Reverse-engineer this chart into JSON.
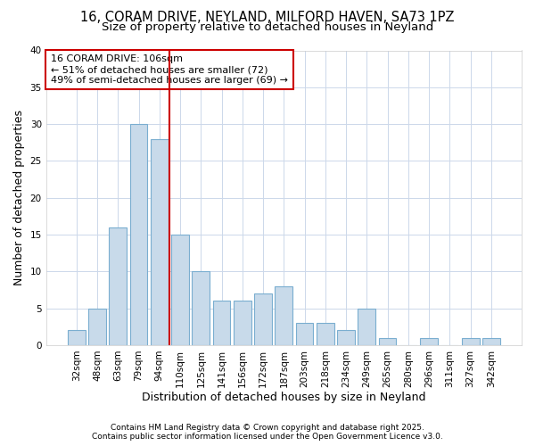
{
  "title1": "16, CORAM DRIVE, NEYLAND, MILFORD HAVEN, SA73 1PZ",
  "title2": "Size of property relative to detached houses in Neyland",
  "xlabel": "Distribution of detached houses by size in Neyland",
  "ylabel": "Number of detached properties",
  "bar_labels": [
    "32sqm",
    "48sqm",
    "63sqm",
    "79sqm",
    "94sqm",
    "110sqm",
    "125sqm",
    "141sqm",
    "156sqm",
    "172sqm",
    "187sqm",
    "203sqm",
    "218sqm",
    "234sqm",
    "249sqm",
    "265sqm",
    "280sqm",
    "296sqm",
    "311sqm",
    "327sqm",
    "342sqm"
  ],
  "bar_values": [
    2,
    5,
    16,
    30,
    28,
    15,
    10,
    6,
    6,
    7,
    8,
    3,
    3,
    2,
    5,
    1,
    0,
    1,
    0,
    1,
    1
  ],
  "bar_color": "#c8daea",
  "bar_edge_color": "#7aaed0",
  "vline_position": 4.5,
  "vline_color": "#cc0000",
  "annotation_text": "16 CORAM DRIVE: 106sqm\n← 51% of detached houses are smaller (72)\n49% of semi-detached houses are larger (69) →",
  "annotation_box_facecolor": "#ffffff",
  "annotation_box_edgecolor": "#cc0000",
  "ylim": [
    0,
    40
  ],
  "yticks": [
    0,
    5,
    10,
    15,
    20,
    25,
    30,
    35,
    40
  ],
  "bg_color": "#ffffff",
  "plot_bg_color": "#ffffff",
  "footer1": "Contains HM Land Registry data © Crown copyright and database right 2025.",
  "footer2": "Contains public sector information licensed under the Open Government Licence v3.0.",
  "grid_color": "#ccd8ea",
  "title_fontsize": 10.5,
  "subtitle_fontsize": 9.5,
  "axis_label_fontsize": 9,
  "tick_fontsize": 7.5,
  "annotation_fontsize": 8,
  "footer_fontsize": 6.5
}
